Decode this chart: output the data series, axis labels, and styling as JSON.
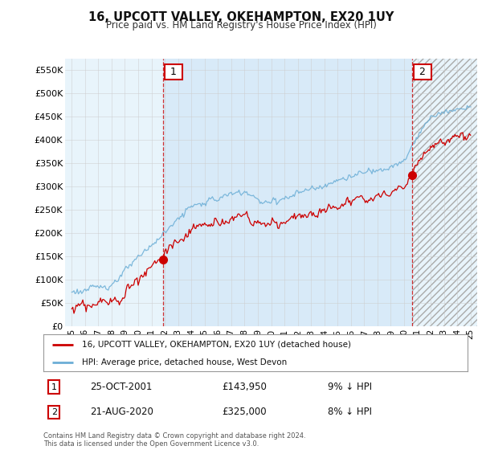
{
  "title": "16, UPCOTT VALLEY, OKEHAMPTON, EX20 1UY",
  "subtitle": "Price paid vs. HM Land Registry's House Price Index (HPI)",
  "legend_line1": "16, UPCOTT VALLEY, OKEHAMPTON, EX20 1UY (detached house)",
  "legend_line2": "HPI: Average price, detached house, West Devon",
  "sale1_date": "25-OCT-2001",
  "sale1_price": 143950,
  "sale1_label": "9% ↓ HPI",
  "sale2_date": "21-AUG-2020",
  "sale2_price": 325000,
  "sale2_label": "8% ↓ HPI",
  "footer": "Contains HM Land Registry data © Crown copyright and database right 2024.\nThis data is licensed under the Open Government Licence v3.0.",
  "hpi_color": "#6baed6",
  "price_color": "#cc0000",
  "vline_color": "#cc0000",
  "bg_color": "#ffffff",
  "plot_bg_color": "#e8f4fb",
  "grid_color": "#cccccc",
  "shade_color": "#ddeeff",
  "ylim": [
    0,
    575000
  ],
  "yticks": [
    0,
    50000,
    100000,
    150000,
    200000,
    250000,
    300000,
    350000,
    400000,
    450000,
    500000,
    550000
  ],
  "sale1_x": 2001.875,
  "sale2_x": 2020.625,
  "xmin": 1994.5,
  "xmax": 2025.5
}
